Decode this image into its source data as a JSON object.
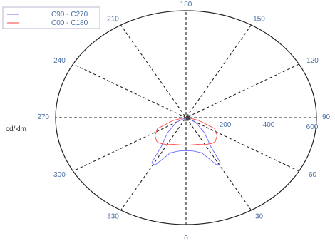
{
  "chart_data": {
    "type": "polar-line",
    "unit_label": "cd/klm",
    "angle_labels": [
      "0",
      "30",
      "60",
      "90",
      "120",
      "150",
      "180",
      "210",
      "240",
      "270",
      "300",
      "330"
    ],
    "radial_ticks": [
      "200",
      "400",
      "600"
    ],
    "radial_max": 600,
    "grid": true,
    "legend_position": "top-left",
    "series": [
      {
        "name": "C90 - C270",
        "color": "#6b6bff",
        "points": [
          {
            "angle": 0,
            "value": 185
          },
          {
            "angle": 10,
            "value": 190
          },
          {
            "angle": 20,
            "value": 210
          },
          {
            "angle": 28,
            "value": 300
          },
          {
            "angle": 30,
            "value": 302
          },
          {
            "angle": 32,
            "value": 297
          },
          {
            "angle": 35,
            "value": 200
          },
          {
            "angle": 45,
            "value": 120
          },
          {
            "angle": 60,
            "value": 50
          },
          {
            "angle": 90,
            "value": 0
          },
          {
            "angle": 270,
            "value": 0
          },
          {
            "angle": 300,
            "value": 50
          },
          {
            "angle": 315,
            "value": 120
          },
          {
            "angle": 325,
            "value": 200
          },
          {
            "angle": 328,
            "value": 297
          },
          {
            "angle": 330,
            "value": 302
          },
          {
            "angle": 332,
            "value": 300
          },
          {
            "angle": 340,
            "value": 210
          },
          {
            "angle": 350,
            "value": 190
          },
          {
            "angle": 360,
            "value": 185
          }
        ]
      },
      {
        "name": "C00 - C180",
        "color": "#ff4040",
        "points": [
          {
            "angle": 0,
            "value": 155
          },
          {
            "angle": 10,
            "value": 155
          },
          {
            "angle": 20,
            "value": 160
          },
          {
            "angle": 30,
            "value": 175
          },
          {
            "angle": 40,
            "value": 188
          },
          {
            "angle": 45,
            "value": 190
          },
          {
            "angle": 55,
            "value": 175
          },
          {
            "angle": 65,
            "value": 145
          },
          {
            "angle": 75,
            "value": 60
          },
          {
            "angle": 85,
            "value": 10
          },
          {
            "angle": 90,
            "value": 0
          },
          {
            "angle": 270,
            "value": 0
          },
          {
            "angle": 275,
            "value": 10
          },
          {
            "angle": 285,
            "value": 60
          },
          {
            "angle": 295,
            "value": 145
          },
          {
            "angle": 305,
            "value": 175
          },
          {
            "angle": 315,
            "value": 190
          },
          {
            "angle": 320,
            "value": 188
          },
          {
            "angle": 330,
            "value": 175
          },
          {
            "angle": 340,
            "value": 160
          },
          {
            "angle": 350,
            "value": 155
          },
          {
            "angle": 360,
            "value": 155
          }
        ]
      }
    ]
  }
}
